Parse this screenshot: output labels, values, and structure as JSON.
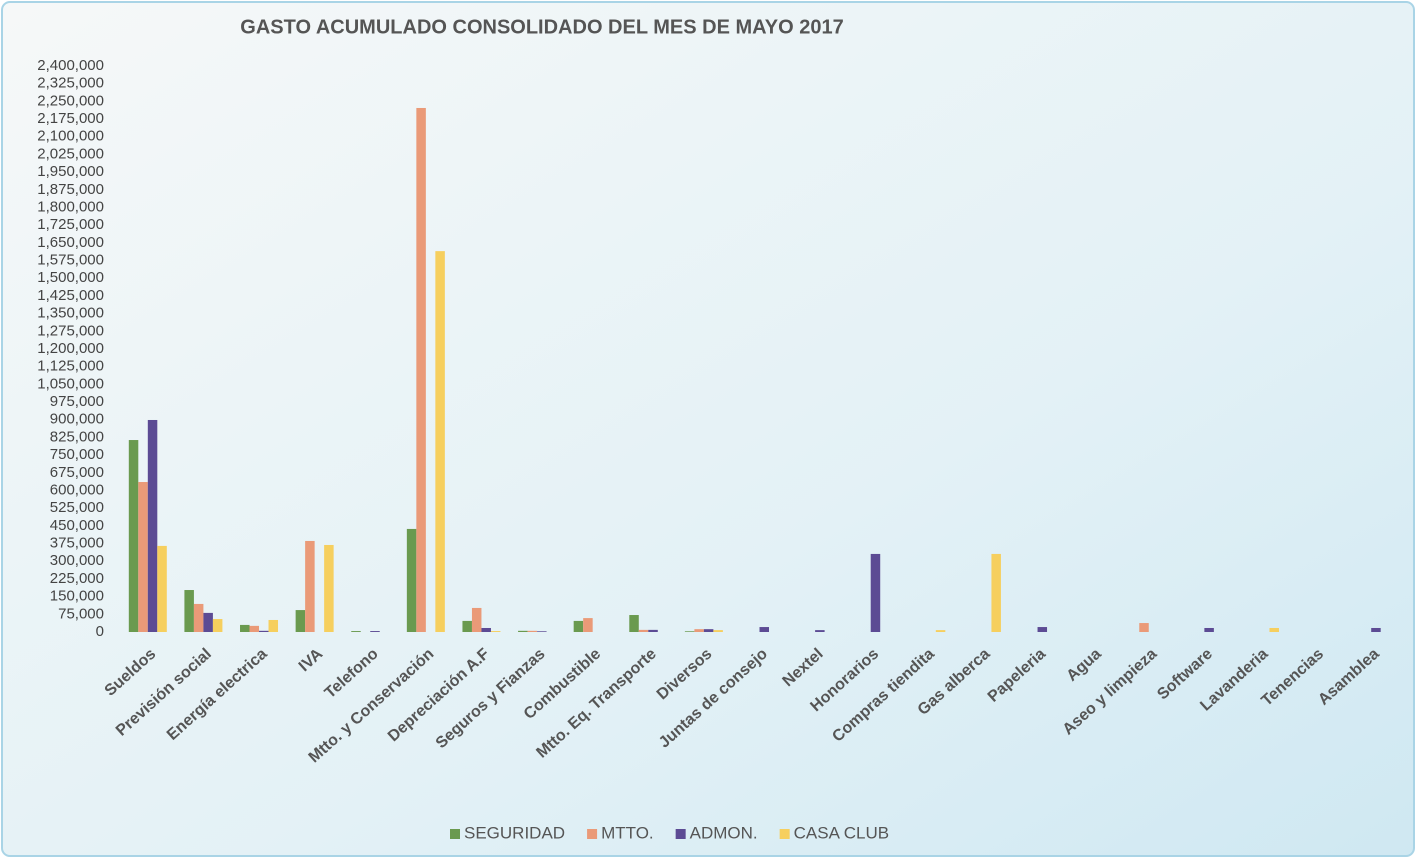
{
  "chart_data": {
    "type": "bar",
    "title": "GASTO ACUMULADO CONSOLIDADO DEL MES DE MAYO 2017",
    "categories": [
      "Sueldos",
      "Previsión social",
      "Energía electrica",
      "IVA",
      "Telefono",
      "Mtto. y Conservación",
      "Depreciación A.F",
      "Seguros y Fianzas",
      "Combustible",
      "Mtto. Eq. Transporte",
      "Diversos",
      "Juntas de consejo",
      "Nextel",
      "Honorarios",
      "Compras tiendita",
      "Gas alberca",
      "Papeleria",
      "Agua",
      "Aseo y limpieza",
      "Software",
      "Lavanderia",
      "Tenencias",
      "Asamblea"
    ],
    "series": [
      {
        "name": "SEGURIDAD",
        "color": "#6a9a4f",
        "values": [
          814000,
          178000,
          30000,
          93000,
          4000,
          437000,
          47000,
          5000,
          47000,
          72000,
          3000,
          0,
          0,
          0,
          0,
          0,
          0,
          0,
          0,
          0,
          0,
          0,
          0
        ]
      },
      {
        "name": "MTTO.",
        "color": "#ea9a78",
        "values": [
          636000,
          119000,
          26000,
          386000,
          0,
          2222000,
          102000,
          5000,
          59000,
          9000,
          12000,
          0,
          0,
          0,
          0,
          0,
          0,
          0,
          38000,
          0,
          0,
          0,
          0
        ]
      },
      {
        "name": "ADMON.",
        "color": "#5c4b94",
        "values": [
          899000,
          81000,
          5000,
          0,
          4000,
          0,
          17000,
          3000,
          0,
          9000,
          12000,
          21000,
          8000,
          331000,
          0,
          0,
          21000,
          0,
          0,
          17000,
          0,
          0,
          17000
        ]
      },
      {
        "name": "CASA CLUB",
        "color": "#f6cf5e",
        "values": [
          365000,
          55000,
          51000,
          369000,
          0,
          1615000,
          4000,
          0,
          0,
          0,
          8000,
          0,
          0,
          0,
          8000,
          331000,
          0,
          0,
          0,
          0,
          17000,
          0,
          0
        ]
      }
    ],
    "ylim": [
      0,
      2400000
    ],
    "yticks": [
      0,
      {
        "value": 75000,
        "label": "75,000"
      },
      {
        "value": 150000,
        "label": "150,000"
      },
      {
        "value": 225000,
        "label": "225,000"
      },
      {
        "value": 300000,
        "label": "300,000"
      },
      {
        "value": 375000,
        "label": "375,000"
      },
      {
        "value": 450000,
        "label": "450,000"
      },
      {
        "value": 525000,
        "label": "525,000"
      },
      {
        "value": 600000,
        "label": "600,000"
      },
      {
        "value": 675000,
        "label": "675,000"
      },
      {
        "value": 750000,
        "label": "750,000"
      },
      {
        "value": 825000,
        "label": "825,000"
      },
      {
        "value": 900000,
        "label": "900,000"
      },
      {
        "value": 975000,
        "label": "975,000"
      },
      {
        "value": 1050000,
        "label": "1,050,000"
      },
      {
        "value": 1125000,
        "label": "1,125,000"
      },
      {
        "value": 1200000,
        "label": "1,200,000"
      },
      {
        "value": 1275000,
        "label": "1,275,000"
      },
      {
        "value": 1350000,
        "label": "1,350,000"
      },
      {
        "value": 1425000,
        "label": "1,425,000"
      },
      {
        "value": 1500000,
        "label": "1,500,000"
      },
      {
        "value": 1575000,
        "label": "1,575,000"
      },
      {
        "value": 1650000,
        "label": "1,650,000"
      },
      {
        "value": 1725000,
        "label": "1,725,000"
      },
      {
        "value": 1800000,
        "label": "1,800,000"
      },
      {
        "value": 1875000,
        "label": "1,875,000"
      },
      {
        "value": 1950000,
        "label": "1,950,000"
      },
      {
        "value": 2025000,
        "label": "2,025,000"
      },
      {
        "value": 2100000,
        "label": "2,100,000"
      },
      {
        "value": 2175000,
        "label": "2,175,000"
      },
      {
        "value": 2250000,
        "label": "2,250,000"
      },
      {
        "value": 2325000,
        "label": "2,325,000"
      },
      {
        "value": 2400000,
        "label": "2,400,000"
      }
    ],
    "grid": false,
    "legend": "bottom"
  }
}
